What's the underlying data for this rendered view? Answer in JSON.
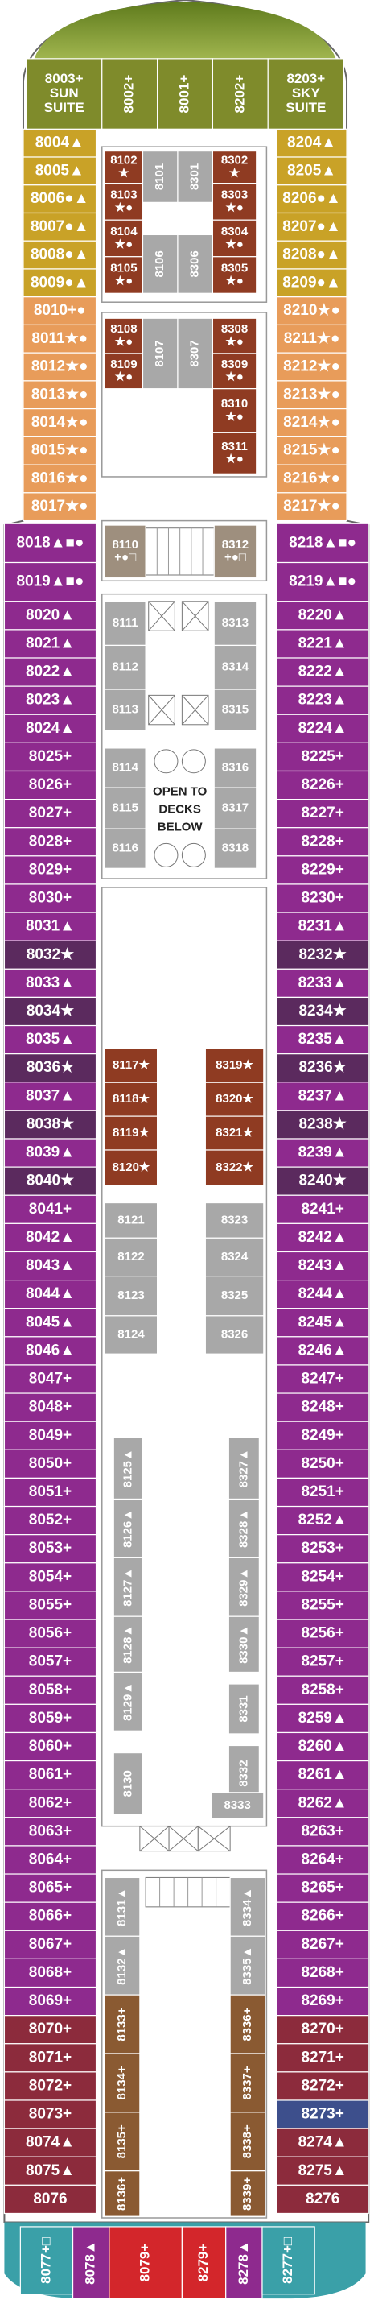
{
  "bow_suites": [
    {
      "lines": [
        "8003+",
        "SUN",
        "SUITE"
      ],
      "color": "#7f8b2b"
    },
    {
      "lines": [
        "8002+"
      ],
      "color": "#7f8b2b"
    },
    {
      "lines": [
        "8001+"
      ],
      "color": "#7f8b2b"
    },
    {
      "lines": [
        "8202+"
      ],
      "color": "#7f8b2b"
    },
    {
      "lines": [
        "8203+",
        "SKY",
        "SUITE"
      ],
      "color": "#7f8b2b"
    }
  ],
  "port_cabins": [
    {
      "label": "8004▲",
      "color": "#c9a227"
    },
    {
      "label": "8005▲",
      "color": "#c9a227"
    },
    {
      "label": "8006●▲",
      "color": "#c9a227"
    },
    {
      "label": "8007●▲",
      "color": "#c9a227"
    },
    {
      "label": "8008●▲",
      "color": "#c9a227"
    },
    {
      "label": "8009●▲",
      "color": "#c9a227"
    },
    {
      "label": "8010+●",
      "color": "#e89c5a"
    },
    {
      "label": "8011★●",
      "color": "#e89c5a"
    },
    {
      "label": "8012★●",
      "color": "#e89c5a"
    },
    {
      "label": "8013★●",
      "color": "#e89c5a"
    },
    {
      "label": "8014★●",
      "color": "#e89c5a"
    },
    {
      "label": "8015★●",
      "color": "#e89c5a"
    },
    {
      "label": "8016★●",
      "color": "#e89c5a"
    },
    {
      "label": "8017★●",
      "color": "#e89c5a"
    },
    {
      "label": "8018▲■●",
      "color": "#8e2a8e"
    },
    {
      "label": "8019▲■●",
      "color": "#8e2a8e"
    },
    {
      "label": "8020▲",
      "color": "#8e2a8e"
    },
    {
      "label": "8021▲",
      "color": "#8e2a8e"
    },
    {
      "label": "8022▲",
      "color": "#8e2a8e"
    },
    {
      "label": "8023▲",
      "color": "#8e2a8e"
    },
    {
      "label": "8024▲",
      "color": "#8e2a8e"
    },
    {
      "label": "8025+",
      "color": "#8e2a8e"
    },
    {
      "label": "8026+",
      "color": "#8e2a8e"
    },
    {
      "label": "8027+",
      "color": "#8e2a8e"
    },
    {
      "label": "8028+",
      "color": "#8e2a8e"
    },
    {
      "label": "8029+",
      "color": "#8e2a8e"
    },
    {
      "label": "8030+",
      "color": "#8e2a8e"
    },
    {
      "label": "8031▲",
      "color": "#8e2a8e"
    },
    {
      "label": "8032★",
      "color": "#5b2a5e"
    },
    {
      "label": "8033▲",
      "color": "#8e2a8e"
    },
    {
      "label": "8034★",
      "color": "#5b2a5e"
    },
    {
      "label": "8035▲",
      "color": "#8e2a8e"
    },
    {
      "label": "8036★",
      "color": "#5b2a5e"
    },
    {
      "label": "8037▲",
      "color": "#8e2a8e"
    },
    {
      "label": "8038★",
      "color": "#5b2a5e"
    },
    {
      "label": "8039▲",
      "color": "#8e2a8e"
    },
    {
      "label": "8040★",
      "color": "#5b2a5e"
    },
    {
      "label": "8041+",
      "color": "#8e2a8e"
    },
    {
      "label": "8042▲",
      "color": "#8e2a8e"
    },
    {
      "label": "8043▲",
      "color": "#8e2a8e"
    },
    {
      "label": "8044▲",
      "color": "#8e2a8e"
    },
    {
      "label": "8045▲",
      "color": "#8e2a8e"
    },
    {
      "label": "8046▲",
      "color": "#8e2a8e"
    },
    {
      "label": "8047+",
      "color": "#8e2a8e"
    },
    {
      "label": "8048+",
      "color": "#8e2a8e"
    },
    {
      "label": "8049+",
      "color": "#8e2a8e"
    },
    {
      "label": "8050+",
      "color": "#8e2a8e"
    },
    {
      "label": "8051+",
      "color": "#8e2a8e"
    },
    {
      "label": "8052+",
      "color": "#8e2a8e"
    },
    {
      "label": "8053+",
      "color": "#8e2a8e"
    },
    {
      "label": "8054+",
      "color": "#8e2a8e"
    },
    {
      "label": "8055+",
      "color": "#8e2a8e"
    },
    {
      "label": "8056+",
      "color": "#8e2a8e"
    },
    {
      "label": "8057+",
      "color": "#8e2a8e"
    },
    {
      "label": "8058+",
      "color": "#8e2a8e"
    },
    {
      "label": "8059+",
      "color": "#8e2a8e"
    },
    {
      "label": "8060+",
      "color": "#8e2a8e"
    },
    {
      "label": "8061+",
      "color": "#8e2a8e"
    },
    {
      "label": "8062+",
      "color": "#8e2a8e"
    },
    {
      "label": "8063+",
      "color": "#8e2a8e"
    },
    {
      "label": "8064+",
      "color": "#8e2a8e"
    },
    {
      "label": "8065+",
      "color": "#8e2a8e"
    },
    {
      "label": "8066+",
      "color": "#8e2a8e"
    },
    {
      "label": "8067+",
      "color": "#8e2a8e"
    },
    {
      "label": "8068+",
      "color": "#8e2a8e"
    },
    {
      "label": "8069+",
      "color": "#8e2a8e"
    },
    {
      "label": "8070+",
      "color": "#8c2b3c"
    },
    {
      "label": "8071+",
      "color": "#8c2b3c"
    },
    {
      "label": "8072+",
      "color": "#8c2b3c"
    },
    {
      "label": "8073+",
      "color": "#8c2b3c"
    },
    {
      "label": "8074▲",
      "color": "#8c2b3c"
    },
    {
      "label": "8075▲",
      "color": "#8c2b3c"
    },
    {
      "label": "8076",
      "color": "#8c2b3c"
    }
  ],
  "starboard_cabins": [
    {
      "label": "8204▲",
      "color": "#c9a227"
    },
    {
      "label": "8205▲",
      "color": "#c9a227"
    },
    {
      "label": "8206●▲",
      "color": "#c9a227"
    },
    {
      "label": "8207●▲",
      "color": "#c9a227"
    },
    {
      "label": "8208●▲",
      "color": "#c9a227"
    },
    {
      "label": "8209●▲",
      "color": "#c9a227"
    },
    {
      "label": "8210★●",
      "color": "#e89c5a"
    },
    {
      "label": "8211★●",
      "color": "#e89c5a"
    },
    {
      "label": "8212★●",
      "color": "#e89c5a"
    },
    {
      "label": "8213★●",
      "color": "#e89c5a"
    },
    {
      "label": "8214★●",
      "color": "#e89c5a"
    },
    {
      "label": "8215★●",
      "color": "#e89c5a"
    },
    {
      "label": "8216★●",
      "color": "#e89c5a"
    },
    {
      "label": "8217★●",
      "color": "#e89c5a"
    },
    {
      "label": "8218▲■●",
      "color": "#8e2a8e"
    },
    {
      "label": "8219▲■●",
      "color": "#8e2a8e"
    },
    {
      "label": "8220▲",
      "color": "#8e2a8e"
    },
    {
      "label": "8221▲",
      "color": "#8e2a8e"
    },
    {
      "label": "8222▲",
      "color": "#8e2a8e"
    },
    {
      "label": "8223▲",
      "color": "#8e2a8e"
    },
    {
      "label": "8224▲",
      "color": "#8e2a8e"
    },
    {
      "label": "8225+",
      "color": "#8e2a8e"
    },
    {
      "label": "8226+",
      "color": "#8e2a8e"
    },
    {
      "label": "8227+",
      "color": "#8e2a8e"
    },
    {
      "label": "8228+",
      "color": "#8e2a8e"
    },
    {
      "label": "8229+",
      "color": "#8e2a8e"
    },
    {
      "label": "8230+",
      "color": "#8e2a8e"
    },
    {
      "label": "8231▲",
      "color": "#8e2a8e"
    },
    {
      "label": "8232★",
      "color": "#5b2a5e"
    },
    {
      "label": "8233▲",
      "color": "#8e2a8e"
    },
    {
      "label": "8234★",
      "color": "#5b2a5e"
    },
    {
      "label": "8235▲",
      "color": "#8e2a8e"
    },
    {
      "label": "8236★",
      "color": "#5b2a5e"
    },
    {
      "label": "8237▲",
      "color": "#8e2a8e"
    },
    {
      "label": "8238★",
      "color": "#5b2a5e"
    },
    {
      "label": "8239▲",
      "color": "#8e2a8e"
    },
    {
      "label": "8240★",
      "color": "#5b2a5e"
    },
    {
      "label": "8241+",
      "color": "#8e2a8e"
    },
    {
      "label": "8242▲",
      "color": "#8e2a8e"
    },
    {
      "label": "8243▲",
      "color": "#8e2a8e"
    },
    {
      "label": "8244▲",
      "color": "#8e2a8e"
    },
    {
      "label": "8245▲",
      "color": "#8e2a8e"
    },
    {
      "label": "8246▲",
      "color": "#8e2a8e"
    },
    {
      "label": "8247+",
      "color": "#8e2a8e"
    },
    {
      "label": "8248+",
      "color": "#8e2a8e"
    },
    {
      "label": "8249+",
      "color": "#8e2a8e"
    },
    {
      "label": "8250+",
      "color": "#8e2a8e"
    },
    {
      "label": "8251+",
      "color": "#8e2a8e"
    },
    {
      "label": "8252▲",
      "color": "#8e2a8e"
    },
    {
      "label": "8253+",
      "color": "#8e2a8e"
    },
    {
      "label": "8254+",
      "color": "#8e2a8e"
    },
    {
      "label": "8255+",
      "color": "#8e2a8e"
    },
    {
      "label": "8256+",
      "color": "#8e2a8e"
    },
    {
      "label": "8257+",
      "color": "#8e2a8e"
    },
    {
      "label": "8258+",
      "color": "#8e2a8e"
    },
    {
      "label": "8259▲",
      "color": "#8e2a8e"
    },
    {
      "label": "8260▲",
      "color": "#8e2a8e"
    },
    {
      "label": "8261▲",
      "color": "#8e2a8e"
    },
    {
      "label": "8262▲",
      "color": "#8e2a8e"
    },
    {
      "label": "8263+",
      "color": "#8e2a8e"
    },
    {
      "label": "8264+",
      "color": "#8e2a8e"
    },
    {
      "label": "8265+",
      "color": "#8e2a8e"
    },
    {
      "label": "8266+",
      "color": "#8e2a8e"
    },
    {
      "label": "8267+",
      "color": "#8e2a8e"
    },
    {
      "label": "8268+",
      "color": "#8e2a8e"
    },
    {
      "label": "8269+",
      "color": "#8e2a8e"
    },
    {
      "label": "8270+",
      "color": "#8c2b3c"
    },
    {
      "label": "8271+",
      "color": "#8c2b3c"
    },
    {
      "label": "8272+",
      "color": "#8c2b3c"
    },
    {
      "label": "8273+",
      "color": "#3d4f8c"
    },
    {
      "label": "8274▲",
      "color": "#8c2b3c"
    },
    {
      "label": "8275▲",
      "color": "#8c2b3c"
    },
    {
      "label": "8276",
      "color": "#8c2b3c"
    }
  ],
  "inner_cabins": [
    {
      "lines": [
        "8102",
        "★"
      ],
      "color": "#8f3b22"
    },
    {
      "lines": [
        "8103",
        "★●"
      ],
      "color": "#8f3b22"
    },
    {
      "lines": [
        "8104",
        "★●"
      ],
      "color": "#8f3b22"
    },
    {
      "lines": [
        "8105",
        "★●"
      ],
      "color": "#8f3b22"
    },
    {
      "lines": [
        "8101"
      ],
      "color": "#a8a8a8"
    },
    {
      "lines": [
        "8106"
      ],
      "color": "#a8a8a8"
    },
    {
      "lines": [
        "8301"
      ],
      "color": "#a8a8a8"
    },
    {
      "lines": [
        "8306"
      ],
      "color": "#a8a8a8"
    },
    {
      "lines": [
        "8302",
        "★"
      ],
      "color": "#8f3b22"
    },
    {
      "lines": [
        "8303",
        "★●"
      ],
      "color": "#8f3b22"
    },
    {
      "lines": [
        "8304",
        "★●"
      ],
      "color": "#8f3b22"
    },
    {
      "lines": [
        "8305",
        "★●"
      ],
      "color": "#8f3b22"
    },
    {
      "lines": [
        "8108",
        "★●"
      ],
      "color": "#8f3b22"
    },
    {
      "lines": [
        "8109",
        "★●"
      ],
      "color": "#8f3b22"
    },
    {
      "lines": [
        "8107"
      ],
      "color": "#a8a8a8"
    },
    {
      "lines": [
        "8307"
      ],
      "color": "#a8a8a8"
    },
    {
      "lines": [
        "8308",
        "★●"
      ],
      "color": "#8f3b22"
    },
    {
      "lines": [
        "8309",
        "★●"
      ],
      "color": "#8f3b22"
    },
    {
      "lines": [
        "8310",
        "★●"
      ],
      "color": "#8f3b22"
    },
    {
      "lines": [
        "8311",
        "★●"
      ],
      "color": "#8f3b22"
    },
    {
      "lines": [
        "8110",
        "+●□"
      ],
      "color": "#9e8f7e"
    },
    {
      "lines": [
        "8312",
        "+●□"
      ],
      "color": "#9e8f7e"
    },
    {
      "lines": [
        "8111"
      ],
      "color": "#a8a8a8"
    },
    {
      "lines": [
        "8112"
      ],
      "color": "#a8a8a8"
    },
    {
      "lines": [
        "8113"
      ],
      "color": "#a8a8a8"
    },
    {
      "lines": [
        "8313"
      ],
      "color": "#a8a8a8"
    },
    {
      "lines": [
        "8314"
      ],
      "color": "#a8a8a8"
    },
    {
      "lines": [
        "8315"
      ],
      "color": "#a8a8a8"
    },
    {
      "lines": [
        "8114"
      ],
      "color": "#a8a8a8"
    },
    {
      "lines": [
        "8115"
      ],
      "color": "#a8a8a8"
    },
    {
      "lines": [
        "8116"
      ],
      "color": "#a8a8a8"
    },
    {
      "lines": [
        "8316"
      ],
      "color": "#a8a8a8"
    },
    {
      "lines": [
        "8317"
      ],
      "color": "#a8a8a8"
    },
    {
      "lines": [
        "8318"
      ],
      "color": "#a8a8a8"
    },
    {
      "lines": [
        "8117★"
      ],
      "color": "#8f3b22"
    },
    {
      "lines": [
        "8118★"
      ],
      "color": "#8f3b22"
    },
    {
      "lines": [
        "8119★"
      ],
      "color": "#8f3b22"
    },
    {
      "lines": [
        "8120★"
      ],
      "color": "#8f3b22"
    },
    {
      "lines": [
        "8319★"
      ],
      "color": "#8f3b22"
    },
    {
      "lines": [
        "8320★"
      ],
      "color": "#8f3b22"
    },
    {
      "lines": [
        "8321★"
      ],
      "color": "#8f3b22"
    },
    {
      "lines": [
        "8322★"
      ],
      "color": "#8f3b22"
    },
    {
      "lines": [
        "8121"
      ],
      "color": "#a8a8a8"
    },
    {
      "lines": [
        "8122"
      ],
      "color": "#a8a8a8"
    },
    {
      "lines": [
        "8123"
      ],
      "color": "#a8a8a8"
    },
    {
      "lines": [
        "8124"
      ],
      "color": "#a8a8a8"
    },
    {
      "lines": [
        "8323"
      ],
      "color": "#a8a8a8"
    },
    {
      "lines": [
        "8324"
      ],
      "color": "#a8a8a8"
    },
    {
      "lines": [
        "8325"
      ],
      "color": "#a8a8a8"
    },
    {
      "lines": [
        "8326"
      ],
      "color": "#a8a8a8"
    },
    {
      "lines": [
        "8125▲"
      ],
      "color": "#a8a8a8"
    },
    {
      "lines": [
        "8126▲"
      ],
      "color": "#a8a8a8"
    },
    {
      "lines": [
        "8127▲"
      ],
      "color": "#a8a8a8"
    },
    {
      "lines": [
        "8128▲"
      ],
      "color": "#a8a8a8"
    },
    {
      "lines": [
        "8129▲"
      ],
      "color": "#a8a8a8"
    },
    {
      "lines": [
        "8130"
      ],
      "color": "#a8a8a8"
    },
    {
      "lines": [
        "8327▲"
      ],
      "color": "#a8a8a8"
    },
    {
      "lines": [
        "8328▲"
      ],
      "color": "#a8a8a8"
    },
    {
      "lines": [
        "8329▲"
      ],
      "color": "#a8a8a8"
    },
    {
      "lines": [
        "8330▲"
      ],
      "color": "#a8a8a8"
    },
    {
      "lines": [
        "8331"
      ],
      "color": "#a8a8a8"
    },
    {
      "lines": [
        "8332"
      ],
      "color": "#a8a8a8"
    },
    {
      "lines": [
        "8333"
      ],
      "color": "#a8a8a8"
    },
    {
      "lines": [
        "8131▲"
      ],
      "color": "#a8a8a8"
    },
    {
      "lines": [
        "8132▲"
      ],
      "color": "#a8a8a8"
    },
    {
      "lines": [
        "8133+"
      ],
      "color": "#8a5a32"
    },
    {
      "lines": [
        "8134+"
      ],
      "color": "#8a5a32"
    },
    {
      "lines": [
        "8135+"
      ],
      "color": "#8a5a32"
    },
    {
      "lines": [
        "8136+"
      ],
      "color": "#8a5a32"
    },
    {
      "lines": [
        "8334▲"
      ],
      "color": "#a8a8a8"
    },
    {
      "lines": [
        "8335▲"
      ],
      "color": "#a8a8a8"
    },
    {
      "lines": [
        "8336+"
      ],
      "color": "#8a5a32"
    },
    {
      "lines": [
        "8337+"
      ],
      "color": "#8a5a32"
    },
    {
      "lines": [
        "8338+"
      ],
      "color": "#8a5a32"
    },
    {
      "lines": [
        "8339+"
      ],
      "color": "#8a5a32"
    }
  ],
  "stern_cabins": [
    {
      "lines": [
        "8077+□"
      ],
      "color": "#3aa0a8"
    },
    {
      "lines": [
        "8078▲"
      ],
      "color": "#8e2a8e"
    },
    {
      "lines": [
        "8079+"
      ],
      "color": "#d3262b"
    },
    {
      "lines": [
        "8279+"
      ],
      "color": "#d3262b"
    },
    {
      "lines": [
        "8278▲"
      ],
      "color": "#8e2a8e"
    },
    {
      "lines": [
        "8277+□"
      ],
      "color": "#3aa0a8"
    }
  ],
  "note": {
    "lines": [
      "OPEN TO",
      "DECKS",
      "BELOW"
    ]
  }
}
